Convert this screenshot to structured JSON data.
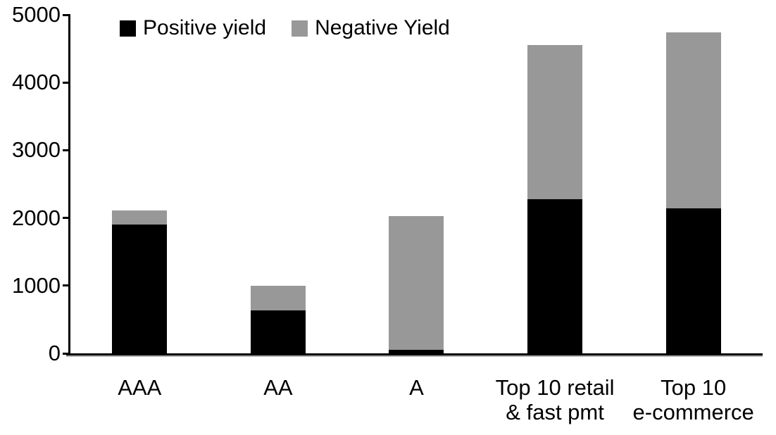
{
  "chart_data": {
    "type": "bar",
    "stacked": true,
    "title": "",
    "categories": [
      "AAA",
      "AA",
      "A",
      "Top 10 retail & fast pmt",
      "Top 10 e-commerce"
    ],
    "category_label_lines": [
      [
        "AAA"
      ],
      [
        "AA"
      ],
      [
        "A"
      ],
      [
        "Top 10 retail",
        "& fast pmt"
      ],
      [
        "Top 10",
        "e-commerce"
      ]
    ],
    "series": [
      {
        "name": "Positive yield",
        "color": "#000000",
        "values": [
          1900,
          630,
          50,
          2280,
          2140
        ]
      },
      {
        "name": "Negative Yield",
        "color": "#989898",
        "values": [
          210,
          370,
          1980,
          2270,
          2600
        ]
      }
    ],
    "ylim": [
      0,
      5000
    ],
    "yticks": [
      "0",
      "1000",
      "2000",
      "3000",
      "4000",
      "5000"
    ],
    "ytick_values": [
      0,
      1000,
      2000,
      3000,
      4000,
      5000
    ],
    "xlabel": "",
    "ylabel": "",
    "grid": false,
    "legend_position": "top-left",
    "axis_color": "#000000",
    "background_color": "#ffffff"
  }
}
